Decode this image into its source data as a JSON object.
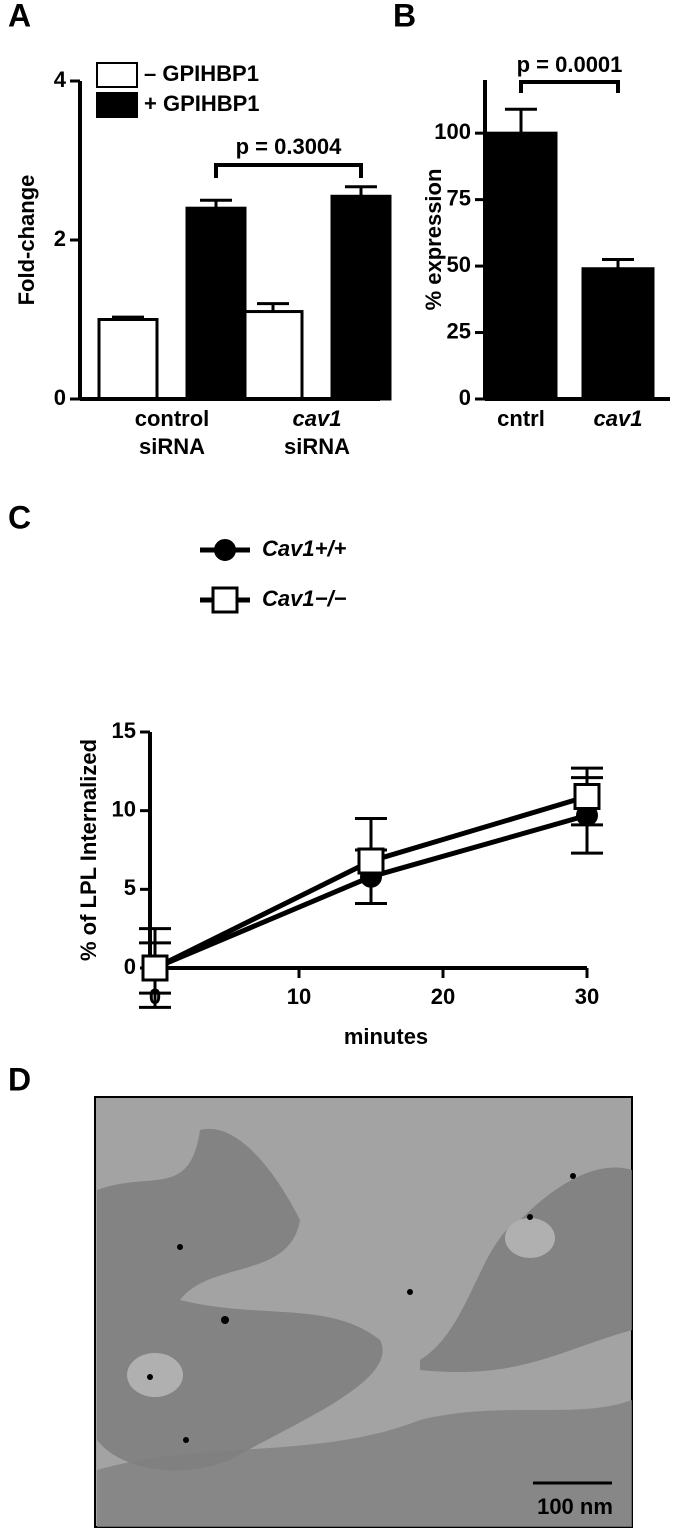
{
  "chart_data": [
    {
      "panel": "A",
      "type": "bar",
      "y_label": "Fold-change",
      "categories": [
        [
          "control",
          "siRNA"
        ],
        [
          "cav1",
          "siRNA"
        ]
      ],
      "series": [
        {
          "name": "– GPIHBP1",
          "color": "#ffffff",
          "values": [
            1.0,
            1.1
          ],
          "errors": [
            0.03,
            0.1
          ]
        },
        {
          "name": "+ GPIHBP1",
          "color": "#000000",
          "values": [
            2.4,
            2.55
          ],
          "errors": [
            0.1,
            0.12
          ]
        }
      ],
      "ylim": [
        0,
        4
      ],
      "yticks": [
        0,
        2,
        4
      ],
      "annotation": "p = 0.3004"
    },
    {
      "panel": "B",
      "type": "bar",
      "y_label": "% expression",
      "categories": [
        [
          "cntrl"
        ],
        [
          "cav1"
        ]
      ],
      "series": [
        {
          "color": "#000000",
          "values": [
            100,
            49
          ],
          "errors": [
            9,
            3.5
          ]
        }
      ],
      "ylim": [
        0,
        120
      ],
      "yticks": [
        0,
        25,
        50,
        75,
        100
      ],
      "annotation": "p = 0.0001"
    },
    {
      "panel": "C",
      "type": "line",
      "x_label": "minutes",
      "y_label": "% of LPL Internalized",
      "x": [
        0,
        15,
        30
      ],
      "series": [
        {
          "name": "Cav1+/+",
          "color": "#000000",
          "marker": "circle",
          "values": [
            0,
            5.8,
            9.7
          ],
          "errors": [
            1.6,
            1.7,
            2.4
          ]
        },
        {
          "name": "Cav1−/−",
          "color": "#ffffff",
          "marker": "square",
          "values": [
            0,
            6.8,
            10.9
          ],
          "errors": [
            2.5,
            2.7,
            1.8
          ]
        }
      ],
      "xlim": [
        0,
        30
      ],
      "xticks": [
        0,
        10,
        20,
        30
      ],
      "ylim": [
        0,
        15
      ],
      "yticks": [
        0,
        5,
        10,
        15
      ]
    }
  ],
  "panel_d": {
    "label": "D",
    "scale_bar": "100 nm"
  }
}
